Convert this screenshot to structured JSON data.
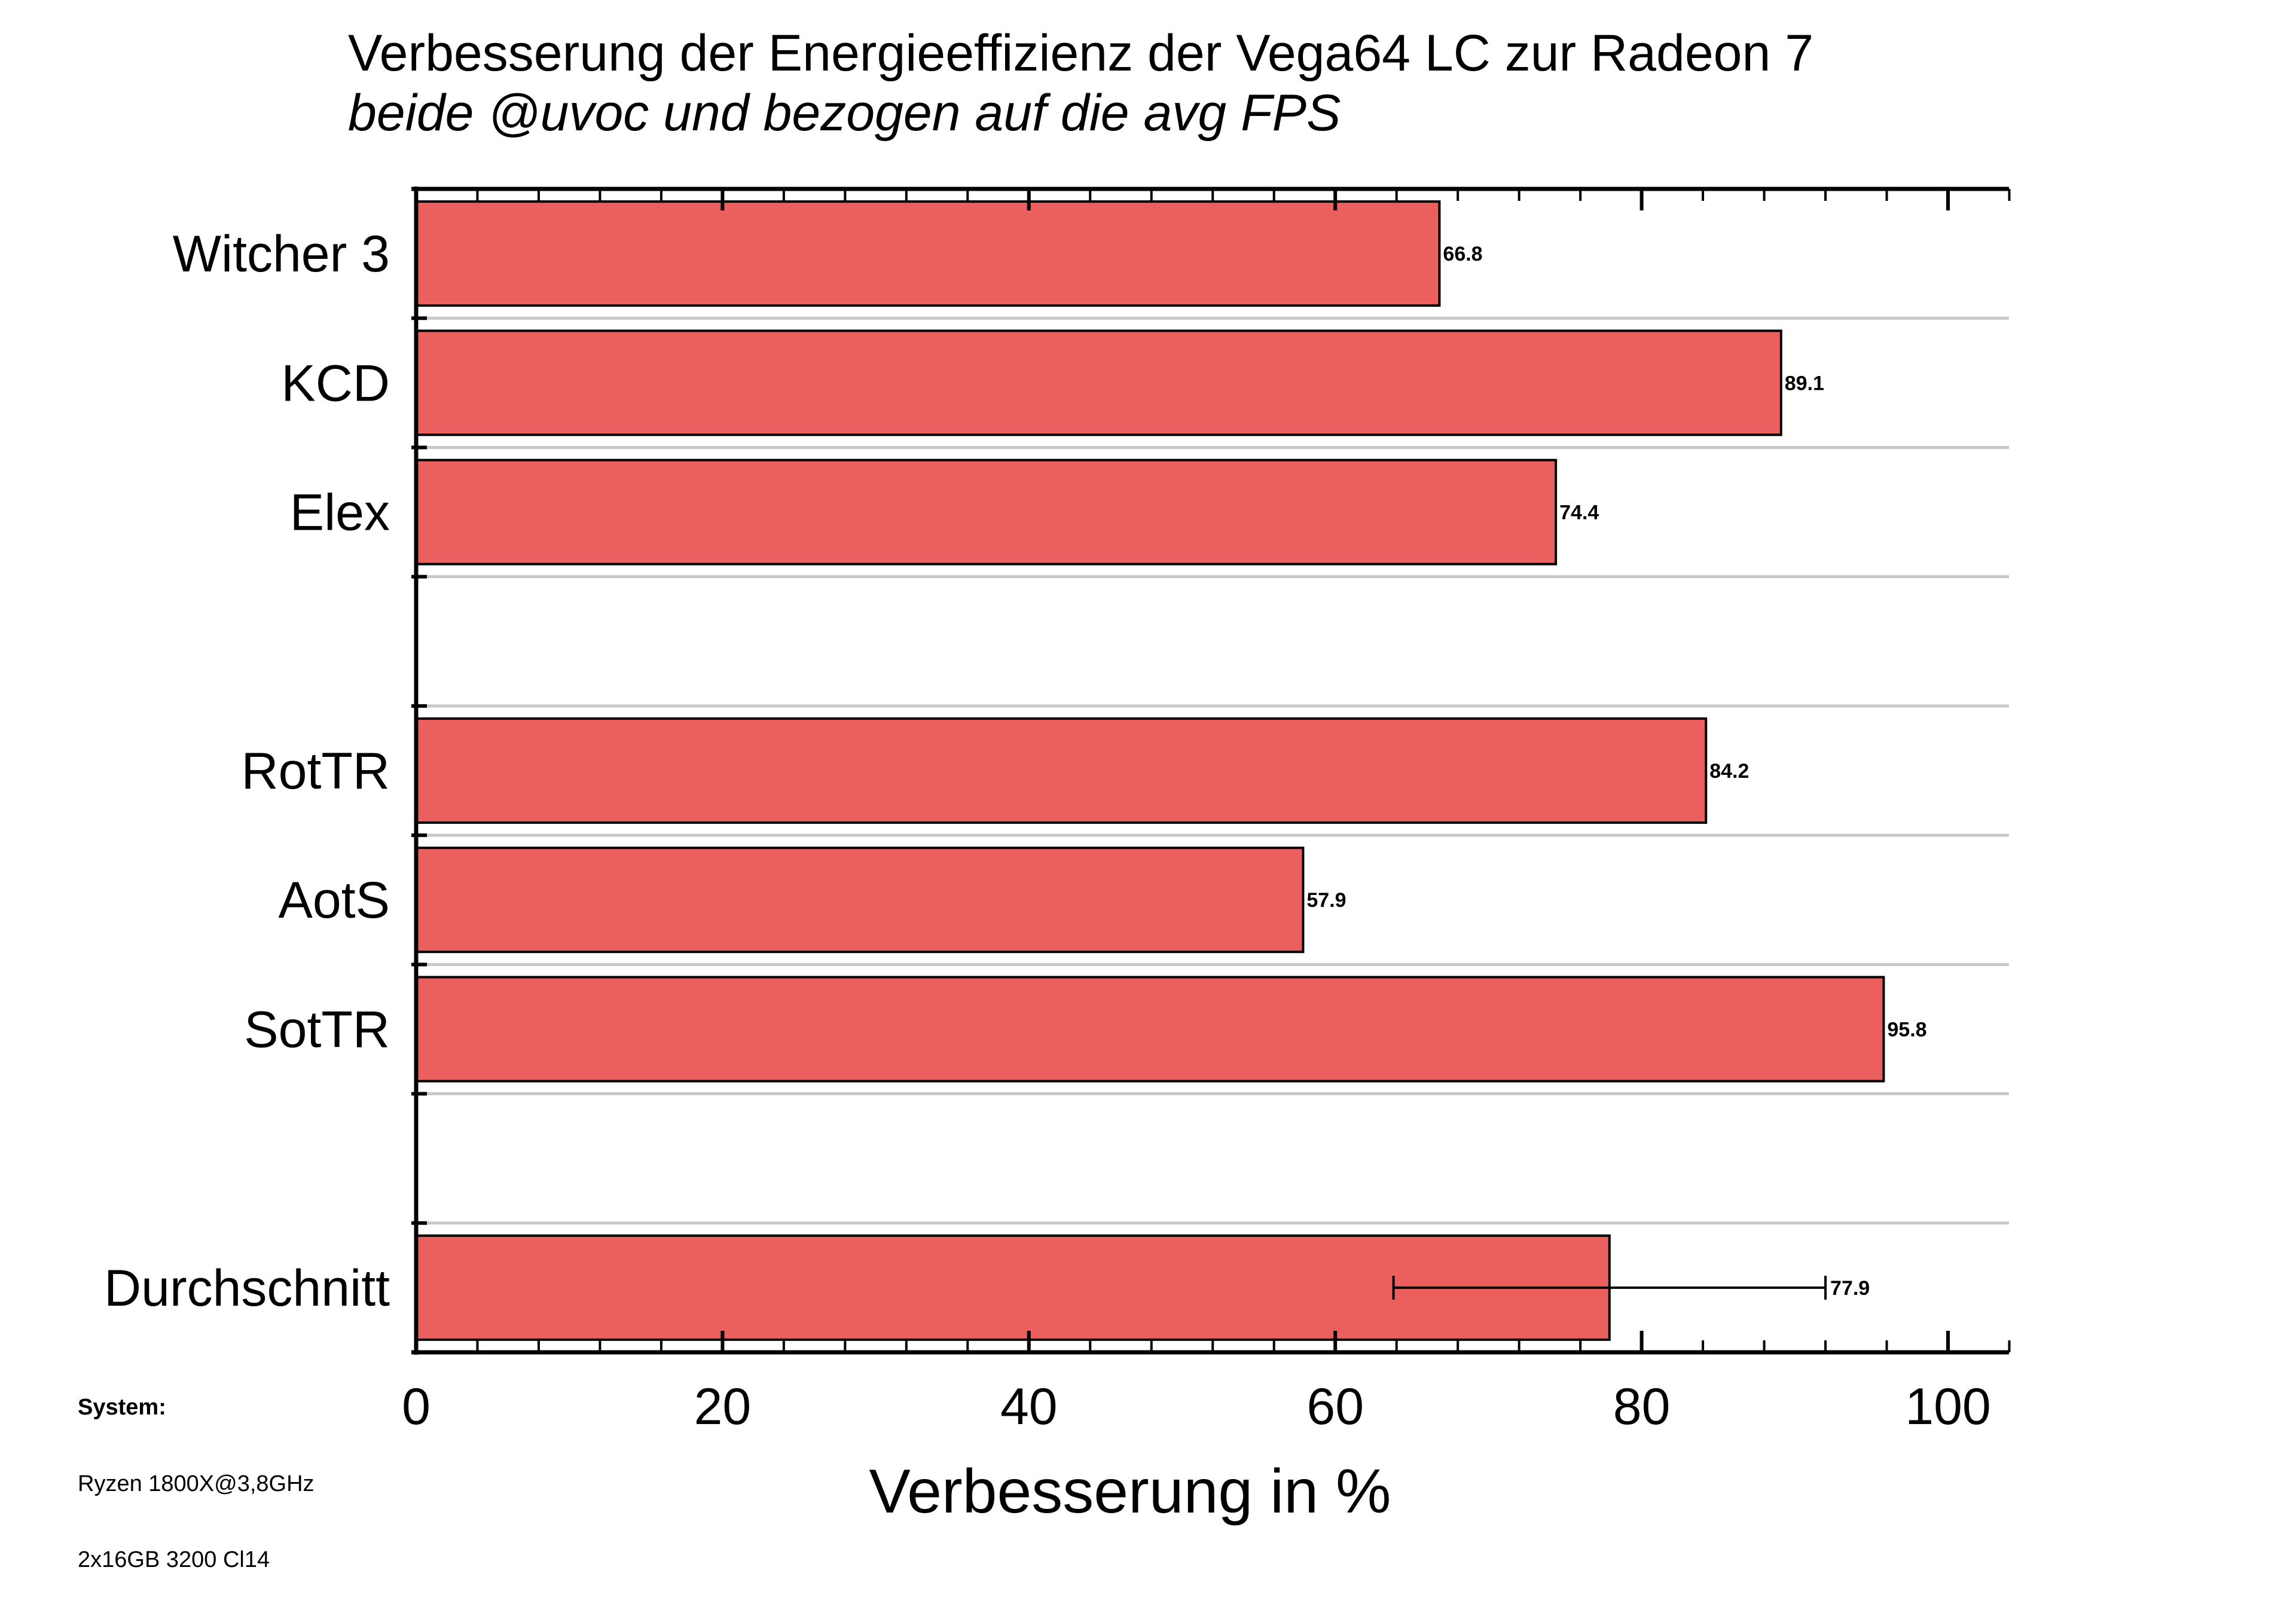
{
  "chart_data": {
    "type": "bar",
    "orientation": "horizontal",
    "title": "Verbesserung der Energieeffizienz der Vega64 LC zur Radeon 7",
    "subtitle": "beide @uvoc und bezogen auf die avg FPS",
    "xlabel": "Verbesserung in %",
    "ylabel": "",
    "xlim": [
      0,
      104
    ],
    "x_ticks": [
      "0",
      "20",
      "40",
      "60",
      "80",
      "100"
    ],
    "grid": "horizontal lines between categories",
    "categories": [
      "Witcher 3",
      "KCD",
      "Elex",
      "",
      "RotTR",
      "AotS",
      "SotTR",
      "",
      "Durchschnitt"
    ],
    "values": [
      66.8,
      89.1,
      74.4,
      null,
      84.2,
      57.9,
      95.8,
      null,
      77.9
    ],
    "data_labels": [
      "66.8",
      "89.1",
      "74.4",
      "",
      "84.2",
      "57.9",
      "95.8",
      "",
      "77.9"
    ],
    "error_bar": {
      "category": "Durchschnitt",
      "low": 63.8,
      "high": 92.0
    },
    "bar_color": "#ec5f5f"
  },
  "system": {
    "heading": "System:",
    "line1": "Ryzen 1800X@3,8GHz",
    "line2": "2x16GB 3200 Cl14"
  }
}
